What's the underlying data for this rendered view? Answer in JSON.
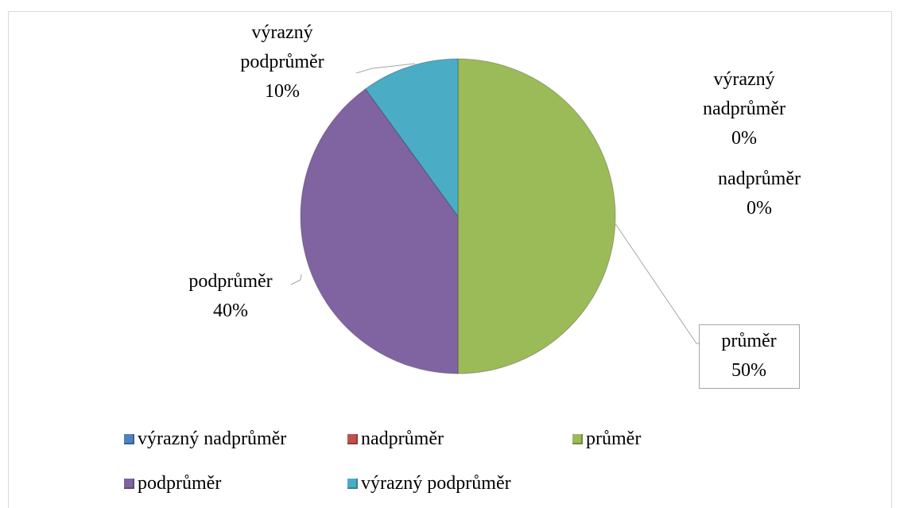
{
  "chart_data": {
    "type": "pie",
    "categories": [
      "výrazný nadprůměr",
      "nadprůměr",
      "průměr",
      "podprůměr",
      "výrazný podprůměr"
    ],
    "values": [
      0,
      0,
      50,
      40,
      10
    ],
    "value_labels": [
      "0%",
      "0%",
      "50%",
      "40%",
      "10%"
    ],
    "colors": [
      "#4f81bd",
      "#c0504d",
      "#9bbb59",
      "#8064a2",
      "#4bacc6"
    ],
    "legend": "bottom"
  }
}
